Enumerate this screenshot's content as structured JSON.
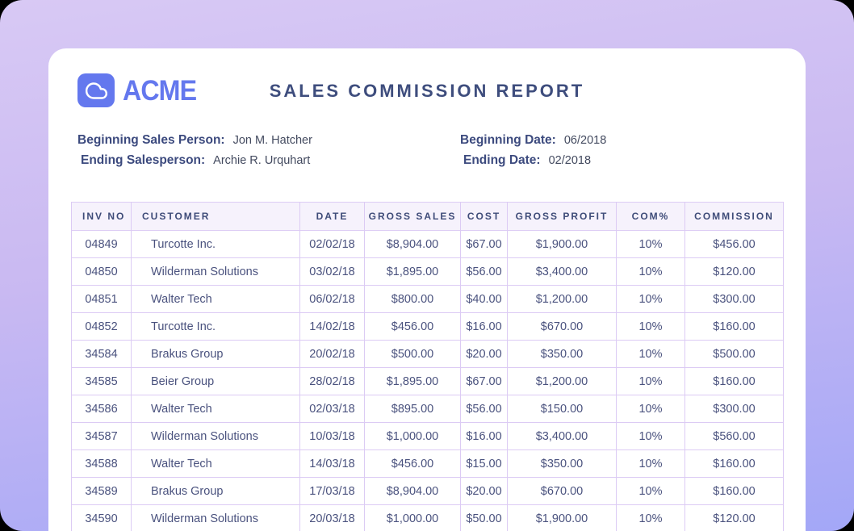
{
  "header": {
    "logo_text": "ACME",
    "title": "SALES COMMISSION REPORT"
  },
  "fields": {
    "beginning_salesperson": {
      "label": "Beginning Sales Person:",
      "value": "Jon M. Hatcher"
    },
    "ending_salesperson": {
      "label": "Ending Salesperson:",
      "value": "Archie R. Urquhart"
    },
    "beginning_date": {
      "label": "Beginning Date:",
      "value": "06/2018"
    },
    "ending_date": {
      "label": "Ending Date:",
      "value": "02/2018"
    }
  },
  "table": {
    "columns": [
      "INV NO",
      "CUSTOMER",
      "DATE",
      "GROSS SALES",
      "COST",
      "GROSS PROFIT",
      "COM%",
      "COMMISSION"
    ],
    "column_keys": [
      "inv-no",
      "customer",
      "date",
      "gross-sales",
      "cost",
      "gross-profit",
      "com-pct",
      "commission"
    ],
    "rows": [
      [
        "04849",
        "Turcotte Inc.",
        "02/02/18",
        "$8,904.00",
        "$67.00",
        "$1,900.00",
        "10%",
        "$456.00"
      ],
      [
        "04850",
        "Wilderman Solutions",
        "03/02/18",
        "$1,895.00",
        "$56.00",
        "$3,400.00",
        "10%",
        "$120.00"
      ],
      [
        "04851",
        "Walter Tech",
        "06/02/18",
        "$800.00",
        "$40.00",
        "$1,200.00",
        "10%",
        "$300.00"
      ],
      [
        "04852",
        "Turcotte Inc.",
        "14/02/18",
        "$456.00",
        "$16.00",
        "$670.00",
        "10%",
        "$160.00"
      ],
      [
        "34584",
        "Brakus Group",
        "20/02/18",
        "$500.00",
        "$20.00",
        "$350.00",
        "10%",
        "$500.00"
      ],
      [
        "34585",
        "Beier Group",
        "28/02/18",
        "$1,895.00",
        "$67.00",
        "$1,200.00",
        "10%",
        "$160.00"
      ],
      [
        "34586",
        "Walter Tech",
        "02/03/18",
        "$895.00",
        "$56.00",
        "$150.00",
        "10%",
        "$300.00"
      ],
      [
        "34587",
        "Wilderman Solutions",
        "10/03/18",
        "$1,000.00",
        "$16.00",
        "$3,400.00",
        "10%",
        "$560.00"
      ],
      [
        "34588",
        "Walter Tech",
        "14/03/18",
        "$456.00",
        "$15.00",
        "$350.00",
        "10%",
        "$160.00"
      ],
      [
        "34589",
        "Brakus Group",
        "17/03/18",
        "$8,904.00",
        "$20.00",
        "$670.00",
        "10%",
        "$160.00"
      ],
      [
        "34590",
        "Wilderman Solutions",
        "20/03/18",
        "$1,000.00",
        "$50.00",
        "$1,900.00",
        "10%",
        "$120.00"
      ]
    ]
  },
  "colors": {
    "accent": "#6478ee",
    "title_text": "#3e4d7d",
    "label_text": "#3c4a7e",
    "value_text": "#434a5f",
    "cell_text": "#4a527e",
    "table_border": "#dccbf4",
    "header_bg": "#f6f2fc",
    "bg_gradient_top": "#d8c9f4",
    "bg_gradient_bottom": "#a3a7f7"
  }
}
